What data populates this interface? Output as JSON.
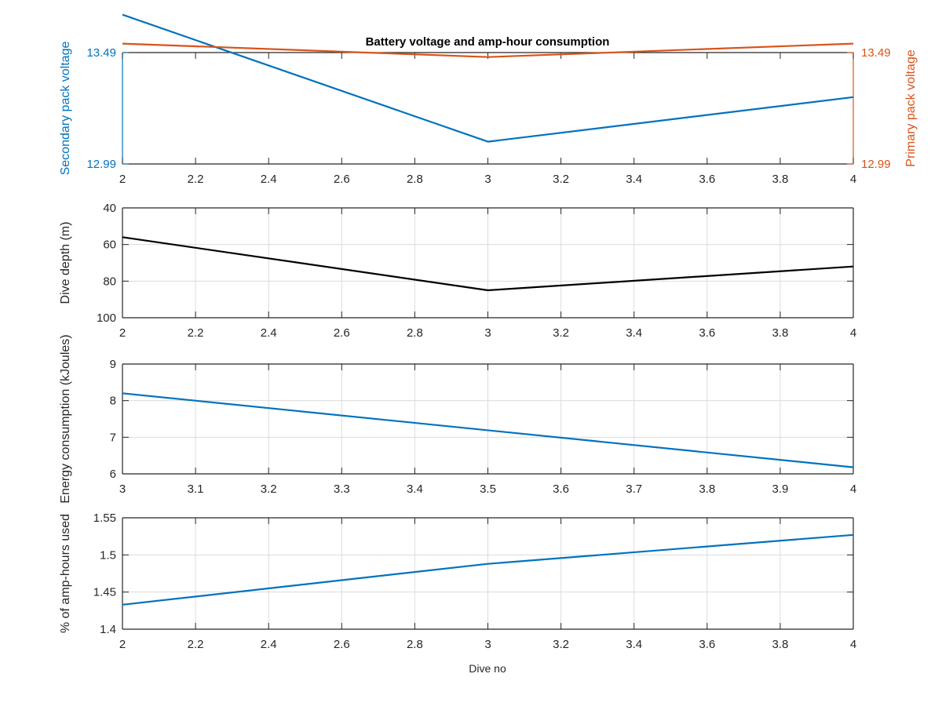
{
  "figure": {
    "title": "Battery voltage and amp-hour consumption",
    "xlabel": "Dive no"
  },
  "colors": {
    "blue": "#0072BD",
    "orange": "#D95319",
    "black": "#000000",
    "axis": "#262626",
    "grid": "#dcdcdc"
  },
  "chart_data": [
    {
      "type": "line",
      "title": "Battery voltage and amp-hour consumption",
      "xlabel": "",
      "ylabel": "Secondary pack voltage",
      "ylabel_right": "Primary pack voltage",
      "xlim": [
        2,
        4
      ],
      "ylim": [
        12.99,
        13.49
      ],
      "ylim_right": [
        12.99,
        13.49
      ],
      "x_ticks": [
        2,
        2.2,
        2.4,
        2.6,
        2.8,
        3,
        3.2,
        3.4,
        3.6,
        3.8,
        4
      ],
      "x_tick_labels": [
        "2",
        "2.2",
        "2.4",
        "2.6",
        "2.8",
        "3",
        "3.2",
        "3.4",
        "3.6",
        "3.8",
        "4"
      ],
      "y_ticks": [
        12.99,
        13.49
      ],
      "y_tick_labels": [
        "12.99",
        "13.49"
      ],
      "y_ticks_right": [
        12.99,
        13.49
      ],
      "y_tick_labels_right": [
        "12.99",
        "13.49"
      ],
      "grid": false,
      "series": [
        {
          "name": "Secondary pack voltage",
          "axis": "left",
          "color": "#0072BD",
          "x": [
            2,
            3,
            4
          ],
          "values": [
            13.66,
            13.09,
            13.29
          ]
        },
        {
          "name": "Primary pack voltage",
          "axis": "right",
          "color": "#D95319",
          "x": [
            2,
            3,
            4
          ],
          "values": [
            13.53,
            13.47,
            13.53
          ]
        }
      ]
    },
    {
      "type": "line",
      "xlabel": "",
      "ylabel": "Dive depth (m)",
      "xlim": [
        2,
        4
      ],
      "ylim": [
        40,
        100
      ],
      "y_reversed": true,
      "x_ticks": [
        2,
        2.2,
        2.4,
        2.6,
        2.8,
        3,
        3.2,
        3.4,
        3.6,
        3.8,
        4
      ],
      "x_tick_labels": [
        "2",
        "2.2",
        "2.4",
        "2.6",
        "2.8",
        "3",
        "3.2",
        "3.4",
        "3.6",
        "3.8",
        "4"
      ],
      "y_ticks": [
        40,
        60,
        80,
        100
      ],
      "y_tick_labels": [
        "40",
        "60",
        "80",
        "100"
      ],
      "grid": true,
      "series": [
        {
          "color": "#000000",
          "x": [
            2,
            3,
            4
          ],
          "values": [
            56,
            85,
            72
          ]
        }
      ]
    },
    {
      "type": "line",
      "xlabel": "",
      "ylabel": "Energy consumption (kJoules)",
      "xlim": [
        3,
        4
      ],
      "ylim": [
        6,
        9
      ],
      "x_ticks": [
        3,
        3.1,
        3.2,
        3.3,
        3.4,
        3.5,
        3.6,
        3.7,
        3.8,
        3.9,
        4
      ],
      "x_tick_labels": [
        "3",
        "3.1",
        "3.2",
        "3.3",
        "3.4",
        "3.5",
        "3.6",
        "3.7",
        "3.8",
        "3.9",
        "4"
      ],
      "y_ticks": [
        6,
        7,
        8,
        9
      ],
      "y_tick_labels": [
        "6",
        "7",
        "8",
        "9"
      ],
      "grid": true,
      "series": [
        {
          "color": "#0072BD",
          "x": [
            3,
            4
          ],
          "values": [
            8.2,
            6.18
          ]
        }
      ]
    },
    {
      "type": "line",
      "xlabel": "Dive no",
      "ylabel": "% of amp-hours used",
      "xlim": [
        2,
        4
      ],
      "ylim": [
        1.4,
        1.55
      ],
      "x_ticks": [
        2,
        2.2,
        2.4,
        2.6,
        2.8,
        3,
        3.2,
        3.4,
        3.6,
        3.8,
        4
      ],
      "x_tick_labels": [
        "2",
        "2.2",
        "2.4",
        "2.6",
        "2.8",
        "3",
        "3.2",
        "3.4",
        "3.6",
        "3.8",
        "4"
      ],
      "y_ticks": [
        1.4,
        1.45,
        1.5,
        1.55
      ],
      "y_tick_labels": [
        "1.4",
        "1.45",
        "1.5",
        "1.55"
      ],
      "grid": true,
      "series": [
        {
          "color": "#0072BD",
          "x": [
            2,
            3,
            4
          ],
          "values": [
            1.433,
            1.488,
            1.527
          ]
        }
      ]
    }
  ]
}
